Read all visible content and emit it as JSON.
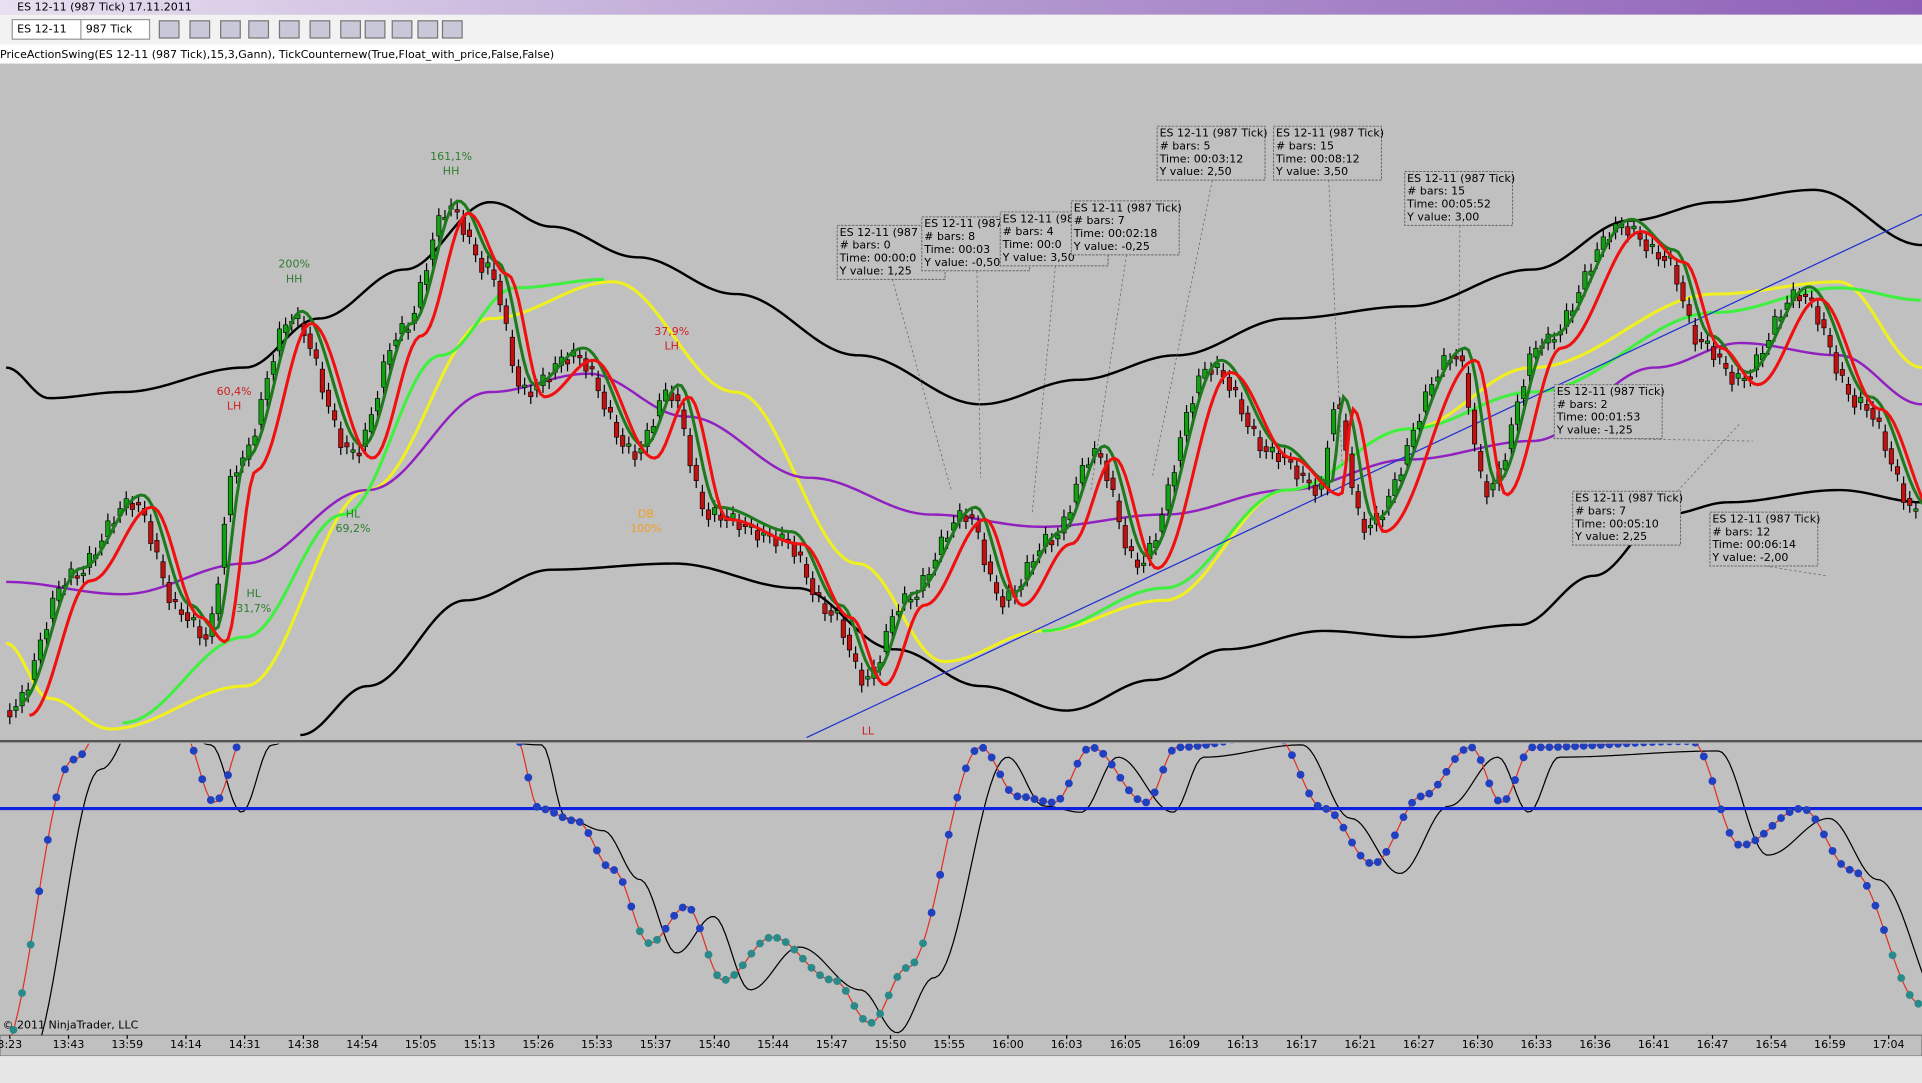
{
  "window": {
    "title": "ES 12-11 (987 Tick)  17.11.2011"
  },
  "toolbar": {
    "instrument": "ES 12-11",
    "period": "987 Tick"
  },
  "indicator_label": "PriceActionSwing(ES 12-11 (987 Tick),15,3,Gann), TickCounternew(True,Float_with_price,False,False)",
  "swing_labels": [
    {
      "pct": "161,1%",
      "kind": "HH",
      "color": "#2e7d2e"
    },
    {
      "pct": "200%",
      "kind": "HH",
      "color": "#2e7d2e"
    },
    {
      "pct": "60,4%",
      "kind": "LH",
      "color": "#d02020"
    },
    {
      "pct": "37,9%",
      "kind": "LH",
      "color": "#d02020"
    },
    {
      "pct": "69,2%",
      "kind": "HL",
      "color": "#2e7d2e"
    },
    {
      "pct": "31,7%",
      "kind": "HL",
      "color": "#2e7d2e"
    },
    {
      "pct": "100%",
      "kind": "DB",
      "color": "#f0a020"
    },
    {
      "kind": "LL",
      "color": "#d02020"
    }
  ],
  "info_boxes": [
    {
      "lines": [
        "ES 12-11 (987 T",
        "# bars:    0",
        "Time:    00:00:0",
        "Y value:  1,25"
      ]
    },
    {
      "lines": [
        "ES 12-11 (987",
        "# bars:    8",
        "Time:    00:03",
        "Y value: -0,50"
      ]
    },
    {
      "lines": [
        "ES 12-11 (98",
        "# bars:    4",
        "Time:    00:0",
        "Y value:  3,50"
      ]
    },
    {
      "lines": [
        "ES 12-11 (987 Tick)",
        "# bars:    7",
        "Time:    00:02:18",
        "Y value: -0,25"
      ]
    },
    {
      "lines": [
        "ES 12-11 (987 Tick)",
        "# bars:    5",
        "Time:    00:03:12",
        "Y value:  2,50"
      ]
    },
    {
      "lines": [
        "ES 12-11 (987 Tick)",
        "# bars:    15",
        "Time:    00:08:12",
        "Y value:  3,50"
      ]
    },
    {
      "lines": [
        "ES 12-11 (987 Tick)",
        "# bars:    15",
        "Time:    00:05:52",
        "Y value:  3,00"
      ]
    },
    {
      "lines": [
        "ES 12-11 (987 Tick)",
        "# bars:    2",
        "Time:    00:01:53",
        "Y value: -1,25"
      ]
    },
    {
      "lines": [
        "ES 12-11 (987 Tick)",
        "# bars:    7",
        "Time:    00:05:10",
        "Y value:  2,25"
      ]
    },
    {
      "lines": [
        "ES 12-11 (987 Tick)",
        "# bars:    12",
        "Time:    00:06:14",
        "Y value: -2,00"
      ]
    }
  ],
  "x_axis": [
    "3:23",
    "13:43",
    "13:59",
    "14:14",
    "14:31",
    "14:38",
    "14:54",
    "15:05",
    "15:13",
    "15:26",
    "15:33",
    "15:37",
    "15:40",
    "15:44",
    "15:47",
    "15:50",
    "15:55",
    "16:00",
    "16:03",
    "16:05",
    "16:09",
    "16:13",
    "16:17",
    "16:21",
    "16:27",
    "16:30",
    "16:33",
    "16:36",
    "16:41",
    "16:47",
    "16:54",
    "16:59",
    "17:04"
  ],
  "copyright": "© 2011 NinjaTrader, LLC"
}
